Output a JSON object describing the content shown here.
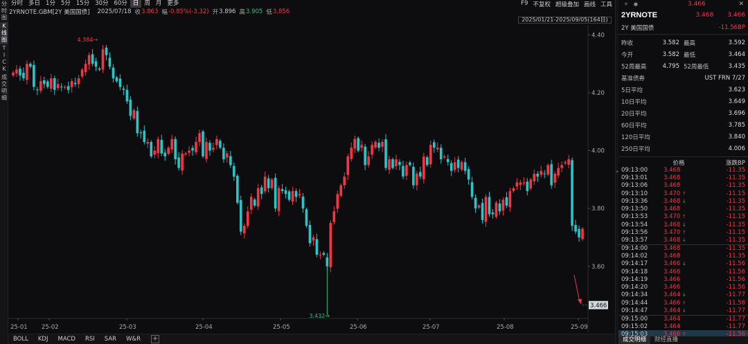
{
  "left_rail": [
    "分时图",
    "K线图",
    "TICK",
    "成交明细"
  ],
  "period_tabs": [
    "分时",
    "多日",
    "1分",
    "5分",
    "15分",
    "30分",
    "60分",
    "日",
    "周",
    "月",
    "更多"
  ],
  "active_period": "日",
  "topbar_right": [
    "F9",
    "不复权",
    "超级叠加",
    "画线",
    "工具"
  ],
  "info": {
    "name": "2YRNOTE.GBM[2Y 美国国债]",
    "date": "2025/07/18",
    "close_label": "收",
    "close": "3.863",
    "change_label": "幅",
    "change": "-0.85%(-3.32)",
    "open_label": "开",
    "open": "3.896",
    "high_label": "高",
    "high": "3.905",
    "low_label": "低",
    "low": "3.856"
  },
  "range_label": "2025/01/21-2025/09/05(164日)",
  "bottom_tabs": [
    "BOLL",
    "KDJ",
    "MACD",
    "RSI",
    "SAR",
    "W&R"
  ],
  "add_icon": "+",
  "panel": {
    "top_price": "3.466",
    "code": "2YRNOTE",
    "bid": "3.468",
    "ask": "3.466",
    "name": "2Y 美国国债",
    "change": "-11.56BP",
    "stats": [
      {
        "l1": "昨收",
        "v1": "3.582",
        "l2": "最高",
        "v2": "3.592",
        "c2": "green"
      },
      {
        "l1": "今开",
        "v1": "3.582",
        "l2": "最低",
        "v2": "3.464",
        "c2": "red"
      },
      {
        "l1": "52周最高",
        "v1": "4.795",
        "l2": "52周最低",
        "v2": "3.435",
        "c2": ""
      }
    ],
    "bench_label": "基准债券",
    "bench_value": "UST FRN 7/27",
    "averages": [
      {
        "k": "5日平均",
        "v": "3.623"
      },
      {
        "k": "10日平均",
        "v": "3.649"
      },
      {
        "k": "20日平均",
        "v": "3.696"
      },
      {
        "k": "60日平均",
        "v": "3.785"
      },
      {
        "k": "120日平均",
        "v": "3.840"
      },
      {
        "k": "250日平均",
        "v": "4.006"
      }
    ],
    "ticks_header": {
      "price": "价格",
      "change": "涨跌BP"
    },
    "ticks": [
      {
        "t": "09:13:00",
        "p": "3.468",
        "a": "",
        "c": "-11.35"
      },
      {
        "t": "09:13:01",
        "p": "3.468",
        "a": "",
        "c": "-11.35"
      },
      {
        "t": "09:13:06",
        "p": "3.468",
        "a": "",
        "c": "-11.35"
      },
      {
        "t": "09:13:10",
        "p": "3.470",
        "a": "↑",
        "c": "-11.15"
      },
      {
        "t": "09:13:36",
        "p": "3.468",
        "a": "↓",
        "c": "-11.35"
      },
      {
        "t": "09:13:50",
        "p": "3.468",
        "a": "",
        "c": "-11.35"
      },
      {
        "t": "09:13:53",
        "p": "3.470",
        "a": "↑",
        "c": "-11.15"
      },
      {
        "t": "09:13:54",
        "p": "3.468",
        "a": "↓",
        "c": "-11.35"
      },
      {
        "t": "09:13:56",
        "p": "3.470",
        "a": "↑",
        "c": "-11.15"
      },
      {
        "t": "09:13:57",
        "p": "3.468",
        "a": "↓",
        "c": "-11.35"
      },
      {
        "t": "09:14:00",
        "p": "3.468",
        "a": "",
        "c": "-11.35"
      },
      {
        "t": "09:14:02",
        "p": "3.468",
        "a": "",
        "c": "-11.35"
      },
      {
        "t": "09:14:17",
        "p": "3.466",
        "a": "↓",
        "c": "-11.56"
      },
      {
        "t": "09:14:18",
        "p": "3.466",
        "a": "",
        "c": "-11.56"
      },
      {
        "t": "09:14:19",
        "p": "3.466",
        "a": "",
        "c": "-11.56"
      },
      {
        "t": "09:14:20",
        "p": "3.466",
        "a": "",
        "c": "-11.56"
      },
      {
        "t": "09:14:34",
        "p": "3.464",
        "a": "↓",
        "c": "-11.77"
      },
      {
        "t": "09:14:44",
        "p": "3.466",
        "a": "↑",
        "c": "-11.56"
      },
      {
        "t": "09:14:47",
        "p": "3.464",
        "a": "↓",
        "c": "-11.77"
      },
      {
        "t": "09:15:00",
        "p": "3.464",
        "a": "",
        "c": "-11.77"
      },
      {
        "t": "09:15:02",
        "p": "3.464",
        "a": "",
        "c": "-11.77"
      },
      {
        "t": "09:15:03",
        "p": "3.466",
        "a": "↑",
        "c": "-11.56"
      }
    ],
    "bottom_tabs": [
      "成交明细",
      "财经直播"
    ]
  },
  "colors": {
    "up": "#f23645",
    "down": "#26c6c9",
    "bg": "#0d0d0f"
  },
  "chart_data": {
    "type": "candlestick",
    "y_ticks": [
      "4.40",
      "4.20",
      "4.00",
      "3.80",
      "3.60"
    ],
    "x_ticks": [
      "25-01",
      "25-02",
      "25-03",
      "25-04",
      "25-05",
      "25-06",
      "25-07",
      "25-08",
      "25-09"
    ],
    "ylim": [
      3.42,
      4.42
    ],
    "max_label": "4.384",
    "min_label": "3.432",
    "last_price": "3.466",
    "closes": [
      4.27,
      4.28,
      4.26,
      4.25,
      4.3,
      4.29,
      4.22,
      4.21,
      4.24,
      4.23,
      4.22,
      4.25,
      4.21,
      4.23,
      4.22,
      4.22,
      4.21,
      4.24,
      4.23,
      4.25,
      4.28,
      4.3,
      4.33,
      4.3,
      4.29,
      4.28,
      4.35,
      4.33,
      4.29,
      4.25,
      4.24,
      4.22,
      4.21,
      4.17,
      4.12,
      4.14,
      4.06,
      4.06,
      4.03,
      4.03,
      3.98,
      4.0,
      4.04,
      3.99,
      3.98,
      4.01,
      4.04,
      3.97,
      3.94,
      3.99,
      3.99,
      4.0,
      4.0,
      4.03,
      4.06,
      3.98,
      4.03,
      4.0,
      4.01,
      4.04,
      4.01,
      3.97,
      3.99,
      3.95,
      3.91,
      3.82,
      3.72,
      3.74,
      3.79,
      3.84,
      3.81,
      3.87,
      3.85,
      3.91,
      3.87,
      3.9,
      3.8,
      3.87,
      3.86,
      3.85,
      3.83,
      3.86,
      3.84,
      3.85,
      3.8,
      3.74,
      3.68,
      3.7,
      3.64,
      3.64,
      3.64,
      3.6,
      3.75,
      3.79,
      3.85,
      3.88,
      3.91,
      3.98,
      4.01,
      4.04,
      4.0,
      4.02,
      3.95,
      3.98,
      4.02,
      4.03,
      4.01,
      4.03,
      3.94,
      3.97,
      3.94,
      3.97,
      3.95,
      3.91,
      3.95,
      3.95,
      3.88,
      3.92,
      3.91,
      3.98,
      3.95,
      4.02,
      4.01,
      4.01,
      3.97,
      3.98,
      3.96,
      3.93,
      3.96,
      3.94,
      3.96,
      3.93,
      3.9,
      3.84,
      3.8,
      3.81,
      3.76,
      3.84,
      3.78,
      3.78,
      3.82,
      3.79,
      3.83,
      3.81,
      3.86,
      3.87,
      3.89,
      3.89,
      3.89,
      3.86,
      3.9,
      3.92,
      3.91,
      3.93,
      3.92,
      3.95,
      3.88,
      3.92,
      3.94,
      3.95,
      3.96,
      3.97,
      3.74,
      3.72,
      3.7,
      3.73
    ]
  }
}
